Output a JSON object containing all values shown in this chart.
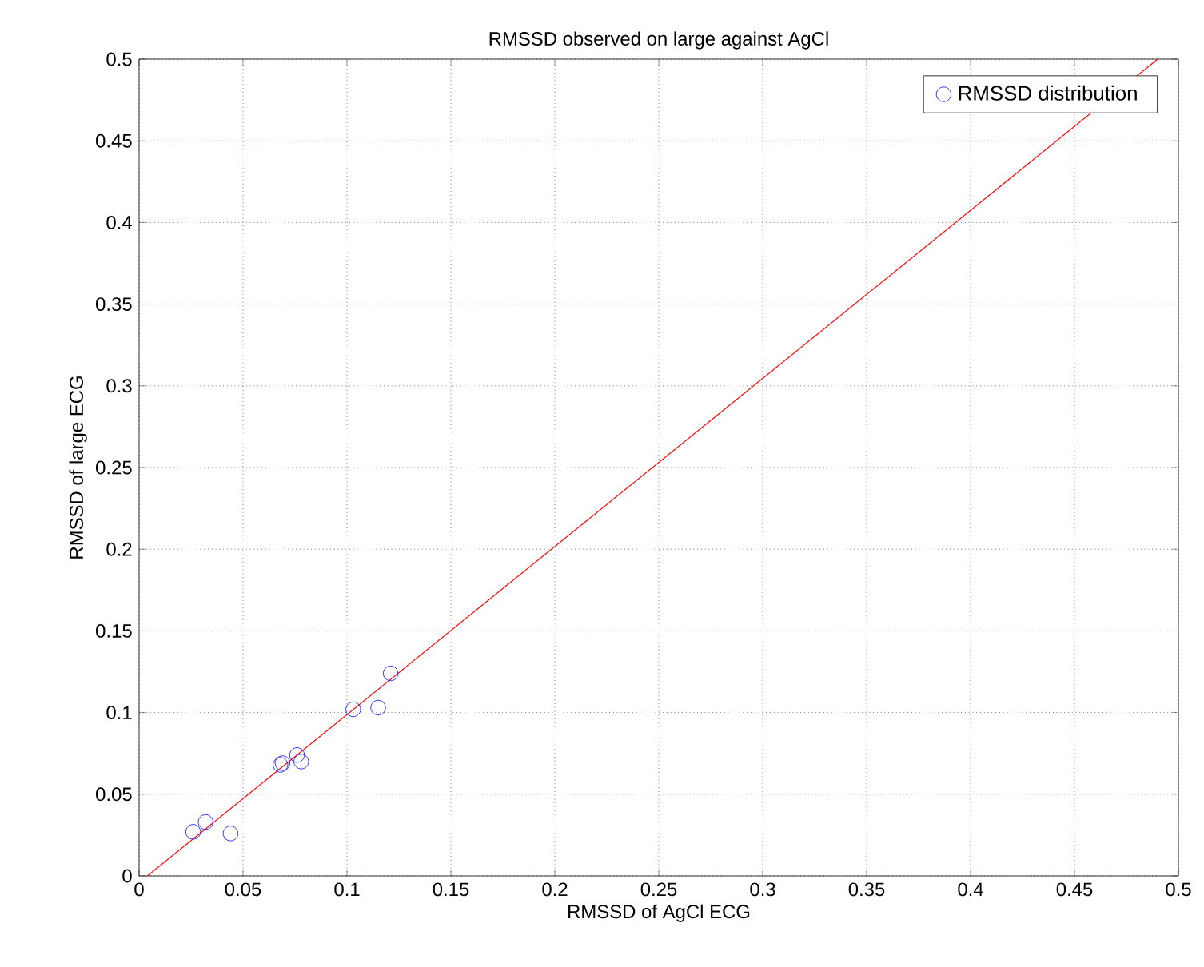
{
  "chart_data": {
    "type": "scatter",
    "title": "RMSSD observed on large against AgCl",
    "xlabel": "RMSSD of AgCl ECG",
    "ylabel": "RMSSD of large ECG",
    "xlim": [
      0,
      0.5
    ],
    "ylim": [
      0,
      0.5
    ],
    "xticks": [
      0,
      0.05,
      0.1,
      0.15,
      0.2,
      0.25,
      0.3,
      0.35,
      0.4,
      0.45,
      0.5
    ],
    "yticks": [
      0,
      0.05,
      0.1,
      0.15,
      0.2,
      0.25,
      0.3,
      0.35,
      0.4,
      0.45,
      0.5
    ],
    "grid": true,
    "legend": "top right",
    "series": [
      {
        "name": "RMSSD distribution",
        "marker": "circle",
        "color": "#0000ff",
        "x": [
          0.026,
          0.032,
          0.044,
          0.068,
          0.069,
          0.076,
          0.078,
          0.103,
          0.115,
          0.121
        ],
        "values": [
          0.027,
          0.033,
          0.026,
          0.068,
          0.069,
          0.074,
          0.07,
          0.102,
          0.103,
          0.124
        ]
      },
      {
        "type": "line",
        "line_style": "solid",
        "color": "#ff0000",
        "x": [
          0.004,
          0.49
        ],
        "values": [
          0,
          0.5
        ]
      }
    ]
  }
}
